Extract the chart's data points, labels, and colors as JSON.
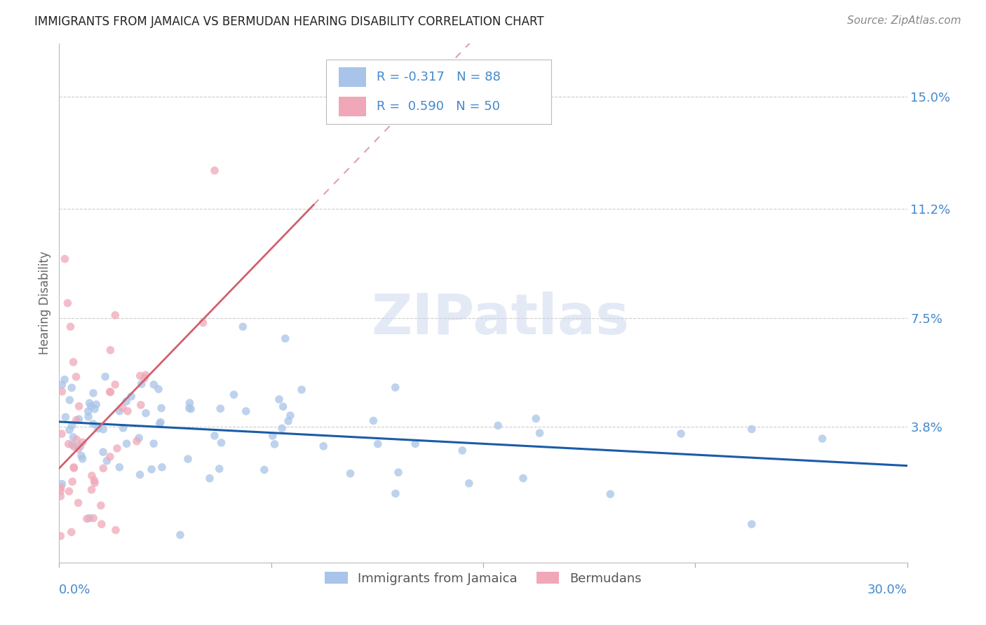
{
  "title": "IMMIGRANTS FROM JAMAICA VS BERMUDAN HEARING DISABILITY CORRELATION CHART",
  "source": "Source: ZipAtlas.com",
  "ylabel": "Hearing Disability",
  "yticks_labels": [
    "15.0%",
    "11.2%",
    "7.5%",
    "3.8%"
  ],
  "ytick_vals": [
    0.15,
    0.112,
    0.075,
    0.038
  ],
  "xmin": 0.0,
  "xmax": 0.3,
  "ymin": -0.008,
  "ymax": 0.168,
  "legend_label1": "Immigrants from Jamaica",
  "legend_label2": "Bermudans",
  "jamaica_color": "#a8c4e8",
  "bermuda_color": "#f0a8b8",
  "trendline_jamaica_color": "#1a5ca8",
  "trendline_bermuda_color": "#d06070",
  "watermark": "ZIPatlas",
  "background_color": "#ffffff",
  "grid_color": "#cccccc",
  "axis_label_color": "#4488cc",
  "title_fontsize": 12,
  "scatter_size": 70,
  "scatter_alpha": 0.75
}
